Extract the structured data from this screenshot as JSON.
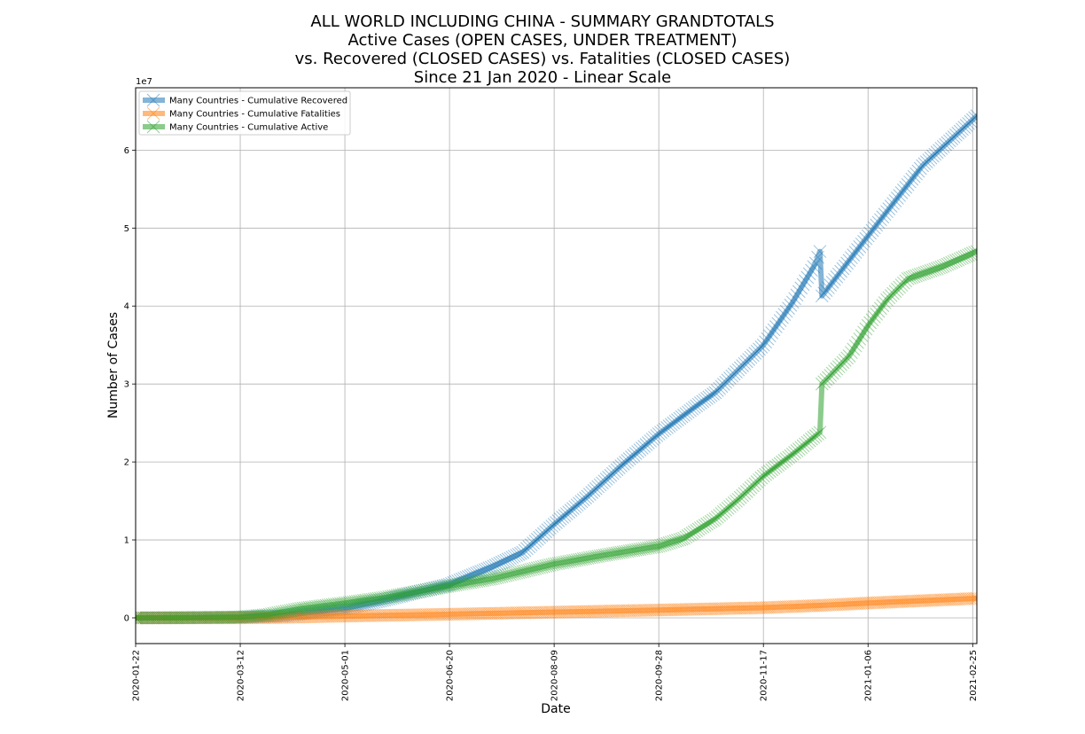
{
  "chart_data": {
    "type": "line",
    "title_lines": [
      "ALL WORLD INCLUDING CHINA - SUMMARY GRANDTOTALS",
      "Active Cases (OPEN CASES, UNDER TREATMENT)",
      "vs. Recovered (CLOSED CASES) vs. Fatalities (CLOSED CASES)",
      "Since 21 Jan 2020 - Linear Scale"
    ],
    "xlabel": "Date",
    "ylabel": "Number of Cases",
    "y_multiplier_label": "1e7",
    "x_range": [
      "2020-01-22",
      "2021-02-27"
    ],
    "ylim": [
      -3300000,
      68000000
    ],
    "x_ticks": [
      "2020-01-22",
      "2020-03-12",
      "2020-05-01",
      "2020-06-20",
      "2020-08-09",
      "2020-09-28",
      "2020-11-17",
      "2021-01-06",
      "2021-02-25"
    ],
    "y_ticks": [
      0,
      10000000,
      20000000,
      30000000,
      40000000,
      50000000,
      60000000
    ],
    "y_tick_labels": [
      "0",
      "1",
      "2",
      "3",
      "4",
      "5",
      "6"
    ],
    "grid": true,
    "legend_position": "top-left",
    "marker": "x",
    "series": [
      {
        "name": "Many Countries - Cumulative Recovered",
        "color": "#1f77b4",
        "points": [
          [
            "2020-01-22",
            0
          ],
          [
            "2020-02-15",
            10000
          ],
          [
            "2020-03-12",
            70000
          ],
          [
            "2020-04-01",
            250000
          ],
          [
            "2020-05-01",
            1200000
          ],
          [
            "2020-05-20",
            2300000
          ],
          [
            "2020-06-20",
            4300000
          ],
          [
            "2020-07-10",
            6500000
          ],
          [
            "2020-07-25",
            8400000
          ],
          [
            "2020-08-09",
            12000000
          ],
          [
            "2020-08-25",
            15600000
          ],
          [
            "2020-09-10",
            19500000
          ],
          [
            "2020-09-28",
            23600000
          ],
          [
            "2020-10-15",
            27000000
          ],
          [
            "2020-10-25",
            28900000
          ],
          [
            "2020-11-17",
            35000000
          ],
          [
            "2020-12-01",
            40500000
          ],
          [
            "2020-12-12",
            45500000
          ],
          [
            "2020-12-14",
            47000000
          ],
          [
            "2020-12-15",
            41300000
          ],
          [
            "2021-01-06",
            49000000
          ],
          [
            "2021-02-01",
            58000000
          ],
          [
            "2021-02-27",
            64400000
          ]
        ]
      },
      {
        "name": "Many Countries - Cumulative Fatalities",
        "color": "#ff7f0e",
        "points": [
          [
            "2020-01-22",
            0
          ],
          [
            "2020-03-12",
            5000
          ],
          [
            "2020-04-01",
            50000
          ],
          [
            "2020-05-01",
            230000
          ],
          [
            "2020-06-20",
            460000
          ],
          [
            "2020-08-09",
            730000
          ],
          [
            "2020-09-28",
            1000000
          ],
          [
            "2020-11-17",
            1300000
          ],
          [
            "2020-12-15",
            1600000
          ],
          [
            "2021-01-06",
            1900000
          ],
          [
            "2021-02-01",
            2200000
          ],
          [
            "2021-02-27",
            2500000
          ]
        ]
      },
      {
        "name": "Many Countries - Cumulative Active",
        "color": "#2ca02c",
        "points": [
          [
            "2020-01-22",
            0
          ],
          [
            "2020-02-15",
            40000
          ],
          [
            "2020-03-12",
            100000
          ],
          [
            "2020-03-25",
            400000
          ],
          [
            "2020-04-10",
            1200000
          ],
          [
            "2020-05-01",
            1900000
          ],
          [
            "2020-05-20",
            2600000
          ],
          [
            "2020-06-20",
            4100000
          ],
          [
            "2020-07-10",
            5000000
          ],
          [
            "2020-08-09",
            6900000
          ],
          [
            "2020-09-01",
            8000000
          ],
          [
            "2020-09-28",
            9200000
          ],
          [
            "2020-10-10",
            10200000
          ],
          [
            "2020-10-25",
            12700000
          ],
          [
            "2020-11-05",
            15200000
          ],
          [
            "2020-11-17",
            18200000
          ],
          [
            "2020-12-01",
            21000000
          ],
          [
            "2020-12-14",
            23800000
          ],
          [
            "2020-12-15",
            30000000
          ],
          [
            "2020-12-28",
            33600000
          ],
          [
            "2021-01-06",
            37500000
          ],
          [
            "2021-01-15",
            40800000
          ],
          [
            "2021-01-25",
            43500000
          ],
          [
            "2021-02-10",
            45000000
          ],
          [
            "2021-02-27",
            47000000
          ]
        ]
      }
    ]
  }
}
